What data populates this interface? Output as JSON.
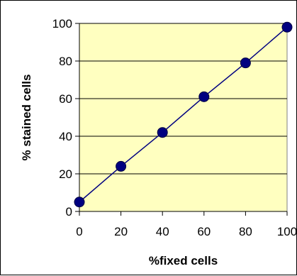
{
  "chart_data": {
    "type": "scatter",
    "title": "",
    "xlabel": "%fixed cells",
    "ylabel": "% stained cells",
    "xlim": [
      0,
      100
    ],
    "ylim": [
      0,
      100
    ],
    "x_ticks": [
      0,
      20,
      40,
      60,
      80,
      100
    ],
    "y_ticks": [
      0,
      20,
      40,
      60,
      80,
      100
    ],
    "grid": "horizontal",
    "legend": "none",
    "series": [
      {
        "x": [
          0,
          20,
          40,
          60,
          80,
          100
        ],
        "values": [
          5,
          24,
          42,
          61,
          79,
          98
        ],
        "line": true,
        "color": "#000080"
      }
    ],
    "colors": {
      "plot_background": "#FFFFC0",
      "marker": "#000080",
      "line": "#000080",
      "gridline": "#000000"
    }
  }
}
